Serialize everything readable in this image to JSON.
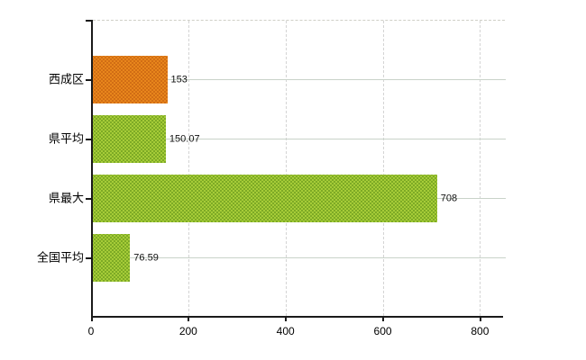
{
  "chart_data": {
    "type": "bar",
    "orientation": "horizontal",
    "title": "",
    "xlabel": "",
    "ylabel": "",
    "categories": [
      "西成区",
      "県平均",
      "県最大",
      "全国平均"
    ],
    "values": [
      153,
      150.07,
      708,
      76.59
    ],
    "value_labels": [
      "153",
      "150.07",
      "708",
      "76.59"
    ],
    "bar_base_colors": [
      "#e8861c",
      "#a6cc38",
      "#a6cc38",
      "#a6cc38"
    ],
    "bar_dot_colors": [
      "#c96511",
      "#6f9e1f",
      "#6f9e1f",
      "#6f9e1f"
    ],
    "xlim": [
      0,
      800
    ],
    "x_ticks": [
      0,
      200,
      400,
      600,
      800
    ],
    "x_tick_labels": [
      "0",
      "200",
      "400",
      "600",
      "800"
    ],
    "grid": true,
    "legend": false
  },
  "colors": {
    "background": "#ffffff",
    "axis": "#1a1a1a",
    "grid_vertical": "#d4d4d4",
    "grid_horizontal": "#c9d3c9",
    "plot_top_border": "#cfcfc7",
    "text": "#000000",
    "bar_orange": "#e8861c",
    "bar_green": "#a6cc38"
  }
}
